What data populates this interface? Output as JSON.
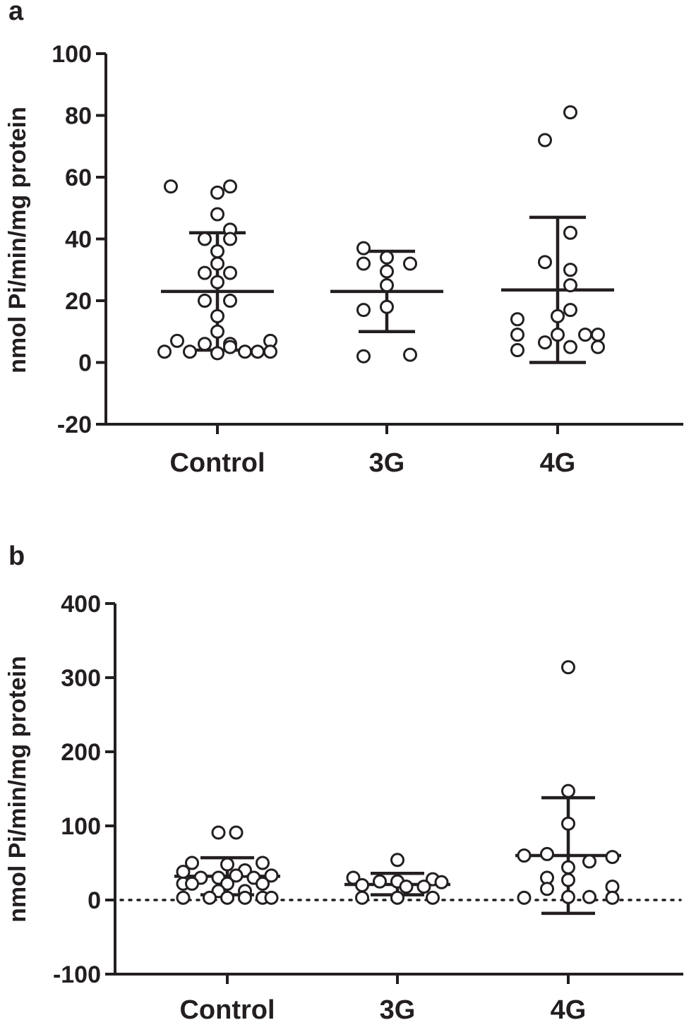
{
  "chart_data": [
    {
      "type": "scatter",
      "panel_label": "a",
      "ylabel": "nmol Pi/min/mg protein",
      "ylim": [
        -20,
        100
      ],
      "yticks": [
        -20,
        0,
        20,
        40,
        60,
        80,
        100
      ],
      "zero_line": false,
      "categories": [
        "Control",
        "3G",
        "4G"
      ],
      "series": [
        {
          "category": "Control",
          "mean": 23,
          "sd_low": 4,
          "sd_high": 42,
          "points": [
            {
              "x": -0.22,
              "y": 57
            },
            {
              "x": 0.06,
              "y": 57
            },
            {
              "x": 0.0,
              "y": 55
            },
            {
              "x": 0.0,
              "y": 48
            },
            {
              "x": 0.06,
              "y": 43
            },
            {
              "x": -0.06,
              "y": 40
            },
            {
              "x": 0.06,
              "y": 40
            },
            {
              "x": 0.0,
              "y": 36
            },
            {
              "x": 0.0,
              "y": 32
            },
            {
              "x": -0.06,
              "y": 29
            },
            {
              "x": 0.06,
              "y": 29
            },
            {
              "x": 0.0,
              "y": 26
            },
            {
              "x": -0.06,
              "y": 20
            },
            {
              "x": 0.06,
              "y": 20
            },
            {
              "x": 0.0,
              "y": 15
            },
            {
              "x": 0.0,
              "y": 10
            },
            {
              "x": -0.19,
              "y": 7
            },
            {
              "x": -0.06,
              "y": 6
            },
            {
              "x": 0.06,
              "y": 6
            },
            {
              "x": 0.25,
              "y": 7
            },
            {
              "x": -0.25,
              "y": 3.5
            },
            {
              "x": -0.13,
              "y": 3.5
            },
            {
              "x": 0.0,
              "y": 3
            },
            {
              "x": 0.13,
              "y": 3.5
            },
            {
              "x": 0.19,
              "y": 3.5
            },
            {
              "x": 0.25,
              "y": 3.5
            },
            {
              "x": 0.06,
              "y": 5
            }
          ]
        },
        {
          "category": "3G",
          "mean": 23,
          "sd_low": 10,
          "sd_high": 36,
          "points": [
            {
              "x": -0.11,
              "y": 37
            },
            {
              "x": 0.0,
              "y": 34
            },
            {
              "x": -0.11,
              "y": 32
            },
            {
              "x": 0.11,
              "y": 32
            },
            {
              "x": 0.0,
              "y": 29.5
            },
            {
              "x": 0.0,
              "y": 25
            },
            {
              "x": -0.11,
              "y": 17
            },
            {
              "x": 0.0,
              "y": 18
            },
            {
              "x": -0.11,
              "y": 2
            },
            {
              "x": 0.11,
              "y": 2.5
            }
          ]
        },
        {
          "category": "4G",
          "mean": 23.5,
          "sd_low": 0,
          "sd_high": 47,
          "points": [
            {
              "x": 0.06,
              "y": 81
            },
            {
              "x": -0.06,
              "y": 72
            },
            {
              "x": 0.06,
              "y": 42
            },
            {
              "x": -0.06,
              "y": 32.5
            },
            {
              "x": 0.06,
              "y": 30
            },
            {
              "x": 0.06,
              "y": 25
            },
            {
              "x": 0.06,
              "y": 17
            },
            {
              "x": 0.0,
              "y": 15
            },
            {
              "x": -0.19,
              "y": 14
            },
            {
              "x": -0.19,
              "y": 9
            },
            {
              "x": 0.0,
              "y": 9
            },
            {
              "x": 0.13,
              "y": 9
            },
            {
              "x": 0.19,
              "y": 9
            },
            {
              "x": -0.06,
              "y": 6.5
            },
            {
              "x": -0.19,
              "y": 4
            },
            {
              "x": 0.06,
              "y": 5
            },
            {
              "x": 0.19,
              "y": 5
            }
          ]
        }
      ]
    },
    {
      "type": "scatter",
      "panel_label": "b",
      "ylabel": "nmol Pi/min/mg protein",
      "ylim": [
        -100,
        400
      ],
      "yticks": [
        -100,
        0,
        100,
        200,
        300,
        400
      ],
      "zero_line": true,
      "categories": [
        "Control",
        "3G",
        "4G"
      ],
      "series": [
        {
          "category": "Control",
          "mean": 32,
          "sd_low": 7,
          "sd_high": 57,
          "points": [
            {
              "x": -0.05,
              "y": 91
            },
            {
              "x": 0.05,
              "y": 91
            },
            {
              "x": -0.2,
              "y": 50
            },
            {
              "x": 0.0,
              "y": 48
            },
            {
              "x": 0.2,
              "y": 50
            },
            {
              "x": -0.25,
              "y": 38
            },
            {
              "x": 0.1,
              "y": 40
            },
            {
              "x": -0.15,
              "y": 30
            },
            {
              "x": -0.05,
              "y": 30
            },
            {
              "x": 0.05,
              "y": 33
            },
            {
              "x": 0.15,
              "y": 30
            },
            {
              "x": 0.25,
              "y": 33
            },
            {
              "x": -0.25,
              "y": 22
            },
            {
              "x": -0.2,
              "y": 22
            },
            {
              "x": 0.0,
              "y": 22
            },
            {
              "x": 0.2,
              "y": 22
            },
            {
              "x": -0.05,
              "y": 12
            },
            {
              "x": 0.1,
              "y": 12
            },
            {
              "x": -0.25,
              "y": 3
            },
            {
              "x": -0.1,
              "y": 3
            },
            {
              "x": 0.0,
              "y": 3
            },
            {
              "x": 0.1,
              "y": 3
            },
            {
              "x": 0.2,
              "y": 3
            },
            {
              "x": 0.25,
              "y": 3
            }
          ]
        },
        {
          "category": "3G",
          "mean": 21,
          "sd_low": 7,
          "sd_high": 36,
          "points": [
            {
              "x": 0.0,
              "y": 54
            },
            {
              "x": -0.25,
              "y": 30
            },
            {
              "x": 0.2,
              "y": 28
            },
            {
              "x": -0.1,
              "y": 25
            },
            {
              "x": 0.0,
              "y": 25
            },
            {
              "x": 0.25,
              "y": 24
            },
            {
              "x": -0.2,
              "y": 20
            },
            {
              "x": 0.05,
              "y": 18
            },
            {
              "x": 0.15,
              "y": 18
            },
            {
              "x": -0.2,
              "y": 3
            },
            {
              "x": 0.0,
              "y": 3
            },
            {
              "x": 0.2,
              "y": 3
            }
          ]
        },
        {
          "category": "4G",
          "mean": 60,
          "sd_low": -18,
          "sd_high": 138,
          "points": [
            {
              "x": 0.0,
              "y": 314
            },
            {
              "x": 0.0,
              "y": 147
            },
            {
              "x": 0.0,
              "y": 103
            },
            {
              "x": -0.25,
              "y": 60
            },
            {
              "x": -0.12,
              "y": 62
            },
            {
              "x": 0.25,
              "y": 58
            },
            {
              "x": 0.12,
              "y": 52
            },
            {
              "x": 0.0,
              "y": 44
            },
            {
              "x": -0.12,
              "y": 30
            },
            {
              "x": 0.0,
              "y": 27
            },
            {
              "x": -0.12,
              "y": 15
            },
            {
              "x": 0.25,
              "y": 18
            },
            {
              "x": -0.25,
              "y": 3
            },
            {
              "x": 0.0,
              "y": 4
            },
            {
              "x": 0.12,
              "y": 4
            },
            {
              "x": 0.25,
              "y": 3
            }
          ]
        }
      ]
    }
  ]
}
